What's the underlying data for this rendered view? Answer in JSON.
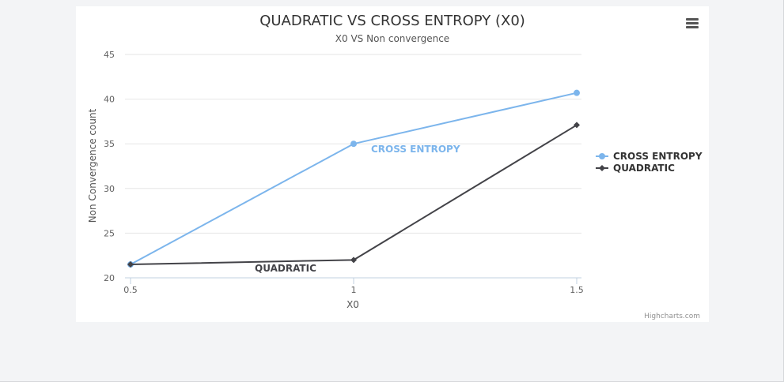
{
  "chart_data": {
    "type": "line",
    "title": "QUADRATIC VS CROSS ENTROPY (X0)",
    "subtitle": "X0 VS Non convergence",
    "xlabel": "X0",
    "ylabel": "Non Convergence count",
    "x": [
      0.5,
      1,
      1.5
    ],
    "x_tick_labels": [
      "0.5",
      "1",
      "1.5"
    ],
    "xlim": [
      0.5,
      1.5
    ],
    "ylim": [
      20,
      45
    ],
    "y_ticks": [
      20,
      25,
      30,
      35,
      40,
      45
    ],
    "grid": true,
    "legend_position": "right",
    "series": [
      {
        "name": "CROSS ENTROPY",
        "values": [
          21.5,
          35,
          40.7
        ],
        "color": "#7cb5ec",
        "marker": "circle",
        "label": "CROSS ENTROPY",
        "label_at_index": 1
      },
      {
        "name": "QUADRATIC",
        "values": [
          21.5,
          22,
          37.1
        ],
        "color": "#434348",
        "marker": "diamond",
        "label": "QUADRATIC",
        "label_at_index": 0
      }
    ],
    "credits": "Highcharts.com"
  },
  "menu_icon": "hamburger-menu-icon"
}
